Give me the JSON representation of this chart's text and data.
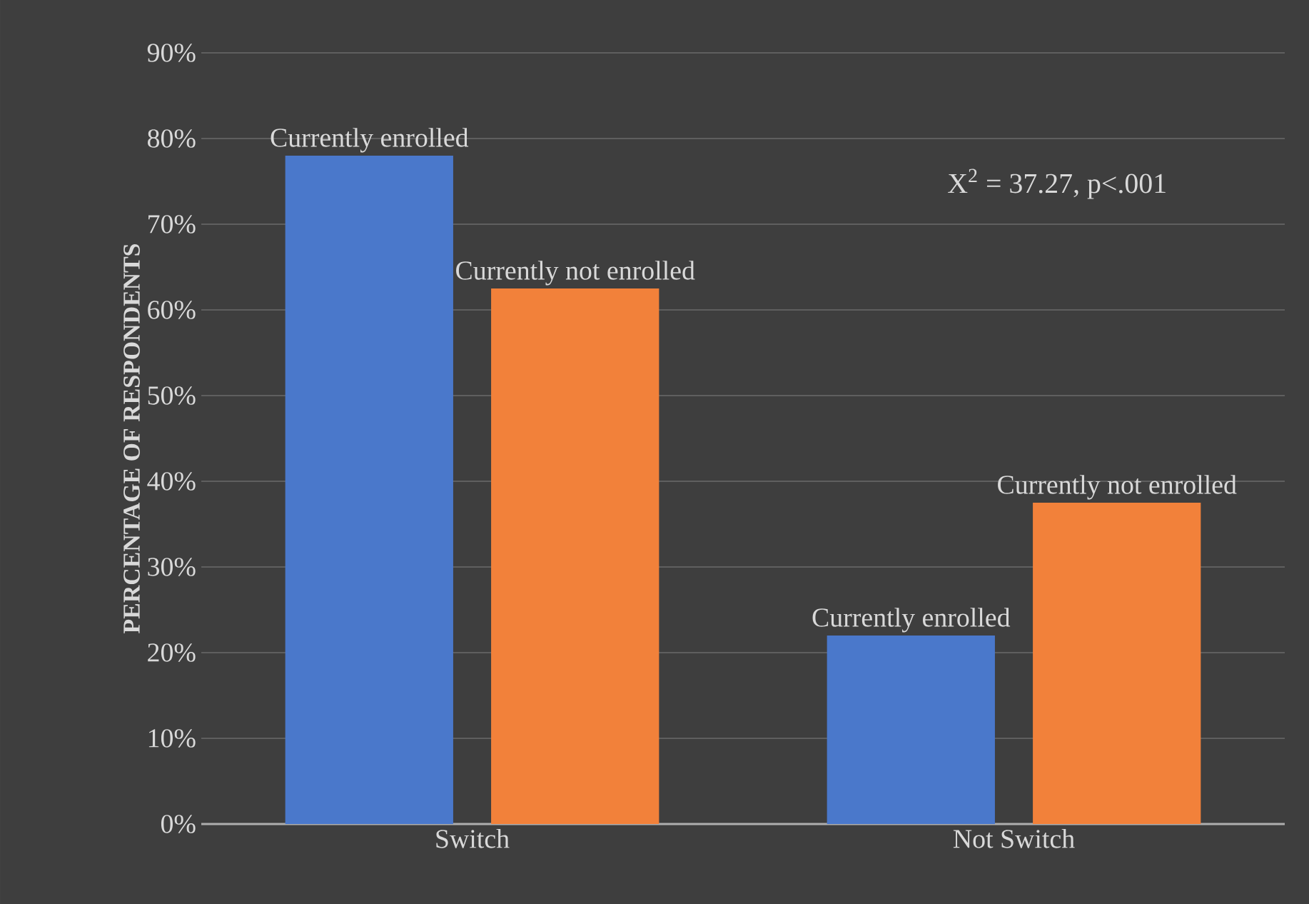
{
  "chart_data": {
    "type": "bar",
    "ylabel": "PERCENTAGE OF RESPONDENTS",
    "categories": [
      "Switch",
      "Not Switch"
    ],
    "series": [
      {
        "name": "Currently enrolled",
        "color": "#4a78cb",
        "values": [
          78,
          22
        ]
      },
      {
        "name": "Currently not enrolled",
        "color": "#f2813a",
        "values": [
          62.5,
          37.5
        ]
      }
    ],
    "ylim": [
      0,
      90
    ],
    "yticks": [
      {
        "value": 0,
        "label": "0%"
      },
      {
        "value": 10,
        "label": "10%"
      },
      {
        "value": 20,
        "label": "20%"
      },
      {
        "value": 30,
        "label": "30%"
      },
      {
        "value": 40,
        "label": "40%"
      },
      {
        "value": 50,
        "label": "50%"
      },
      {
        "value": 60,
        "label": "60%"
      },
      {
        "value": 70,
        "label": "70%"
      },
      {
        "value": 80,
        "label": "80%"
      },
      {
        "value": 90,
        "label": "90%"
      }
    ],
    "grid": "y",
    "annotations": [
      "X$^{2}$ = 37.27, p<.001"
    ]
  }
}
